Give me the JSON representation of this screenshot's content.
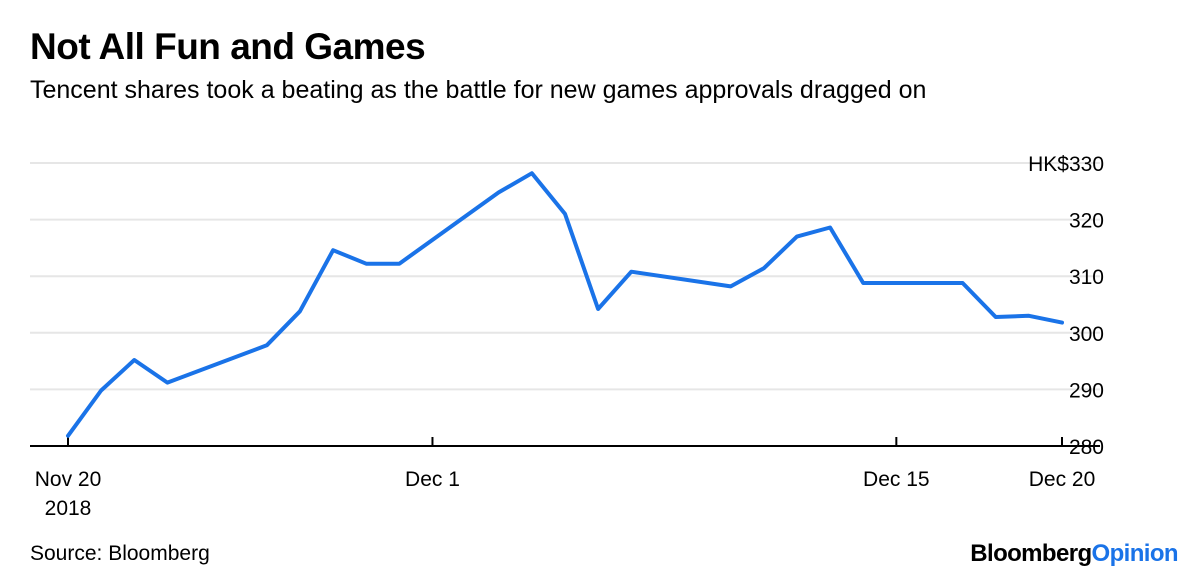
{
  "header": {
    "title": "Not All Fun and Games",
    "subtitle": "Tencent shares took a beating as the battle for new games approvals dragged on"
  },
  "footer": {
    "source": "Source: Bloomberg",
    "brand_main": "Bloomberg",
    "brand_accent": "Opinion"
  },
  "colors": {
    "line": "#1a73e8",
    "grid": "#e6e6e6",
    "axis": "#000000",
    "brand_accent": "#1a73e8"
  },
  "chart_data": {
    "type": "line",
    "title": "Not All Fun and Games",
    "subtitle": "Tencent shares took a beating as the battle for new games approvals dragged on",
    "xlabel": "",
    "ylabel": "",
    "x_range": [
      "2018-11-20",
      "2018-12-20"
    ],
    "ylim": [
      280,
      330
    ],
    "y_ticks": [
      280,
      290,
      300,
      310,
      320,
      330
    ],
    "y_tick_labels": [
      "280",
      "290",
      "300",
      "310",
      "320",
      "HK$330"
    ],
    "x_ticks": [
      {
        "date": "2018-11-20",
        "label": "Nov 20",
        "sublabel": "2018"
      },
      {
        "date": "2018-12-01",
        "label": "Dec 1",
        "sublabel": ""
      },
      {
        "date": "2018-12-15",
        "label": "Dec 15",
        "sublabel": ""
      },
      {
        "date": "2018-12-20",
        "label": "Dec 20",
        "sublabel": ""
      }
    ],
    "grid": true,
    "series": [
      {
        "name": "",
        "x": [
          "2018-11-20",
          "2018-11-21",
          "2018-11-22",
          "2018-11-23",
          "2018-11-26",
          "2018-11-27",
          "2018-11-28",
          "2018-11-29",
          "2018-11-30",
          "2018-12-03",
          "2018-12-04",
          "2018-12-05",
          "2018-12-06",
          "2018-12-07",
          "2018-12-10",
          "2018-12-11",
          "2018-12-12",
          "2018-12-13",
          "2018-12-14",
          "2018-12-17",
          "2018-12-18",
          "2018-12-19",
          "2018-12-20"
        ],
        "values": [
          281.8,
          289.8,
          295.2,
          291.2,
          297.8,
          303.8,
          314.6,
          312.2,
          312.2,
          324.8,
          328.2,
          321.0,
          304.2,
          310.8,
          308.2,
          311.4,
          317.0,
          318.6,
          308.8,
          308.8,
          302.8,
          303.0,
          301.8
        ]
      }
    ]
  }
}
